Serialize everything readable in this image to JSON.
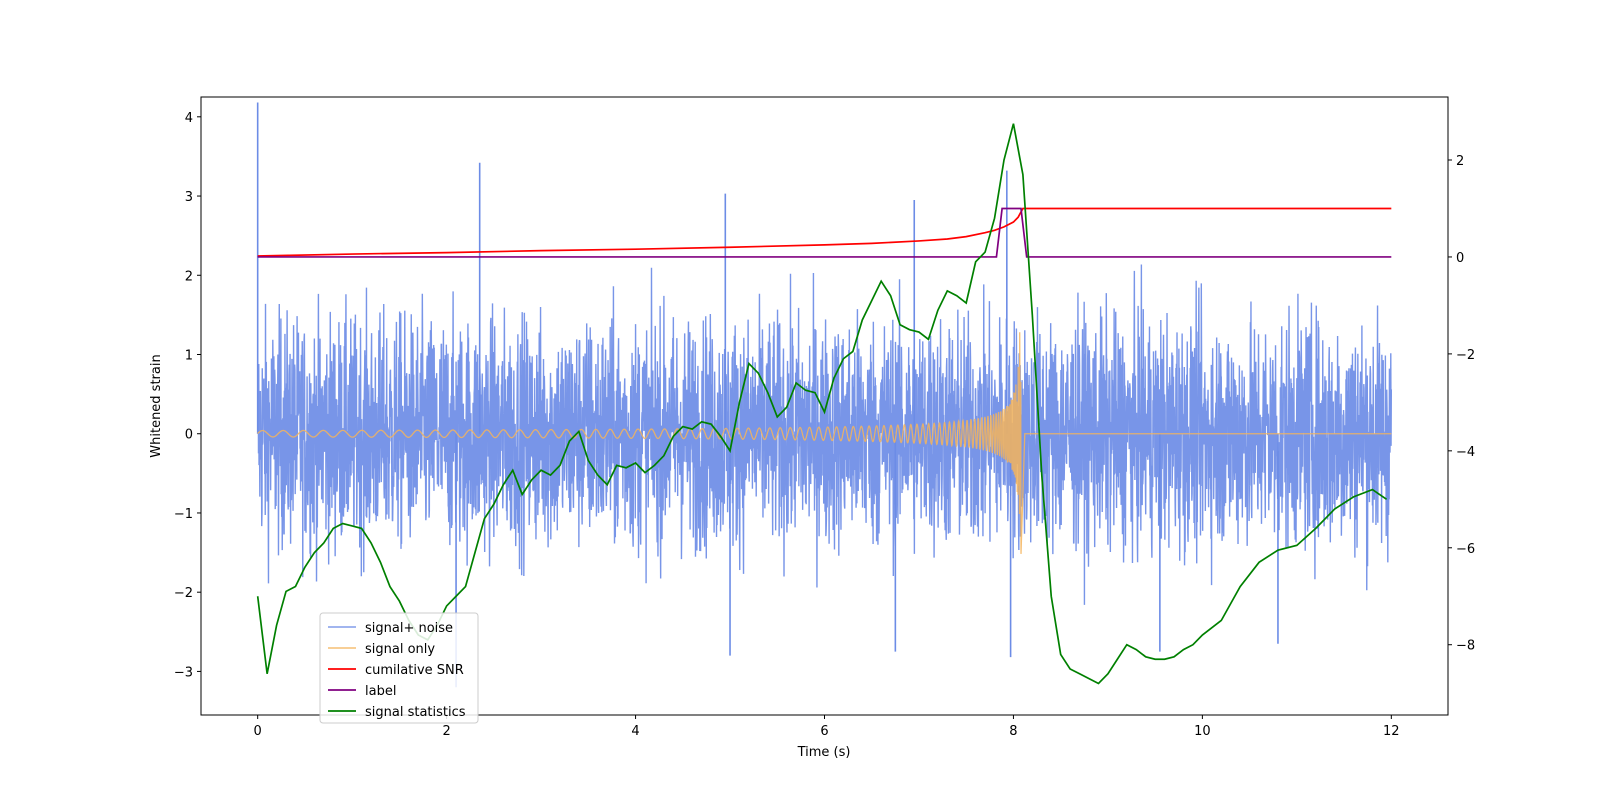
{
  "chart_data": {
    "type": "line",
    "title": "",
    "xlabel": "Time (s)",
    "ylabel": "Whitened strain",
    "xlim": [
      -0.6,
      12.6
    ],
    "ylim": [
      -3.55,
      4.25
    ],
    "y2lim": [
      -9.45,
      3.3
    ],
    "grid": false,
    "legend_position": "bottom-left",
    "x_ticks": [
      0,
      2,
      4,
      6,
      8,
      10,
      12
    ],
    "y_ticks": [
      -3,
      -2,
      -1,
      0,
      1,
      2,
      3,
      4
    ],
    "y2_ticks": [
      -8,
      -6,
      -4,
      -2,
      0,
      2
    ],
    "series": [
      {
        "name": "signal+ noise",
        "axis": "left",
        "color": "#6c8ce6",
        "noise_band": {
          "typical_amplitude": 1.6,
          "peaks": [
            [
              0.0,
              4.18
            ],
            [
              2.35,
              3.42
            ],
            [
              4.95,
              3.03
            ],
            [
              6.95,
              2.95
            ],
            [
              7.93,
              3.32
            ],
            [
              2.1,
              -3.2
            ],
            [
              5.0,
              -2.8
            ],
            [
              6.75,
              -2.75
            ],
            [
              9.55,
              -2.75
            ],
            [
              7.97,
              -2.82
            ],
            [
              10.8,
              -2.65
            ]
          ]
        }
      },
      {
        "name": "signal only",
        "axis": "left",
        "color": "#f5b45a",
        "chirp": {
          "start": 0.0,
          "end": 8.08,
          "start_amplitude": 0.04,
          "peak_amplitude": 1.6
        }
      },
      {
        "name": "cumilative SNR",
        "axis": "right",
        "color": "#ff0000",
        "x": [
          0.0,
          1.0,
          2.0,
          3.0,
          4.0,
          5.0,
          6.0,
          6.5,
          7.0,
          7.3,
          7.5,
          7.7,
          7.8,
          7.9,
          8.0,
          8.05,
          8.1,
          12.0
        ],
        "y": [
          0.02,
          0.06,
          0.09,
          0.13,
          0.16,
          0.2,
          0.25,
          0.28,
          0.33,
          0.37,
          0.42,
          0.5,
          0.55,
          0.62,
          0.72,
          0.82,
          1.0,
          1.0
        ]
      },
      {
        "name": "label",
        "axis": "right",
        "color": "#800080",
        "x": [
          0.0,
          7.82,
          7.88,
          8.08,
          8.14,
          12.0
        ],
        "y": [
          0.0,
          0.0,
          1.0,
          1.0,
          0.0,
          0.0
        ]
      },
      {
        "name": "signal statistics",
        "axis": "right",
        "color": "#008000",
        "x": [
          0.0,
          0.1,
          0.2,
          0.3,
          0.4,
          0.5,
          0.6,
          0.7,
          0.8,
          0.9,
          1.0,
          1.1,
          1.2,
          1.3,
          1.4,
          1.5,
          1.6,
          1.7,
          1.8,
          1.9,
          2.0,
          2.1,
          2.2,
          2.3,
          2.4,
          2.5,
          2.6,
          2.7,
          2.8,
          2.9,
          3.0,
          3.1,
          3.2,
          3.3,
          3.4,
          3.5,
          3.6,
          3.7,
          3.8,
          3.9,
          4.0,
          4.1,
          4.2,
          4.3,
          4.4,
          4.5,
          4.6,
          4.7,
          4.8,
          4.9,
          5.0,
          5.1,
          5.2,
          5.3,
          5.4,
          5.5,
          5.6,
          5.7,
          5.8,
          5.9,
          6.0,
          6.1,
          6.2,
          6.3,
          6.4,
          6.5,
          6.6,
          6.7,
          6.8,
          6.9,
          7.0,
          7.1,
          7.2,
          7.3,
          7.4,
          7.5,
          7.6,
          7.7,
          7.8,
          7.9,
          8.0,
          8.1,
          8.2,
          8.3,
          8.4,
          8.5,
          8.6,
          8.7,
          8.8,
          8.9,
          9.0,
          9.1,
          9.2,
          9.3,
          9.4,
          9.5,
          9.6,
          9.7,
          9.8,
          9.9,
          10.0,
          10.2,
          10.4,
          10.6,
          10.8,
          11.0,
          11.2,
          11.4,
          11.6,
          11.8,
          11.95
        ],
        "y": [
          -7.0,
          -8.6,
          -7.6,
          -6.9,
          -6.8,
          -6.4,
          -6.1,
          -5.9,
          -5.6,
          -5.5,
          -5.55,
          -5.6,
          -5.9,
          -6.3,
          -6.8,
          -7.1,
          -7.5,
          -7.8,
          -7.9,
          -7.6,
          -7.2,
          -7.0,
          -6.8,
          -6.1,
          -5.4,
          -5.1,
          -4.7,
          -4.4,
          -4.9,
          -4.6,
          -4.4,
          -4.5,
          -4.3,
          -3.8,
          -3.6,
          -4.2,
          -4.5,
          -4.7,
          -4.3,
          -4.35,
          -4.25,
          -4.45,
          -4.3,
          -4.1,
          -3.7,
          -3.5,
          -3.55,
          -3.4,
          -3.45,
          -3.7,
          -4.0,
          -3.0,
          -2.2,
          -2.4,
          -2.8,
          -3.3,
          -3.1,
          -2.6,
          -2.75,
          -2.8,
          -3.2,
          -2.5,
          -2.1,
          -1.95,
          -1.3,
          -0.9,
          -0.5,
          -0.8,
          -1.4,
          -1.5,
          -1.55,
          -1.7,
          -1.1,
          -0.7,
          -0.8,
          -0.95,
          -0.1,
          0.1,
          0.8,
          2.0,
          2.75,
          1.7,
          -1.2,
          -4.5,
          -7.0,
          -8.2,
          -8.5,
          -8.6,
          -8.7,
          -8.8,
          -8.6,
          -8.3,
          -8.0,
          -8.1,
          -8.25,
          -8.3,
          -8.3,
          -8.25,
          -8.1,
          -8.0,
          -7.8,
          -7.5,
          -6.8,
          -6.3,
          -6.05,
          -5.95,
          -5.6,
          -5.2,
          -4.95,
          -4.8,
          -5.0
        ]
      }
    ]
  }
}
